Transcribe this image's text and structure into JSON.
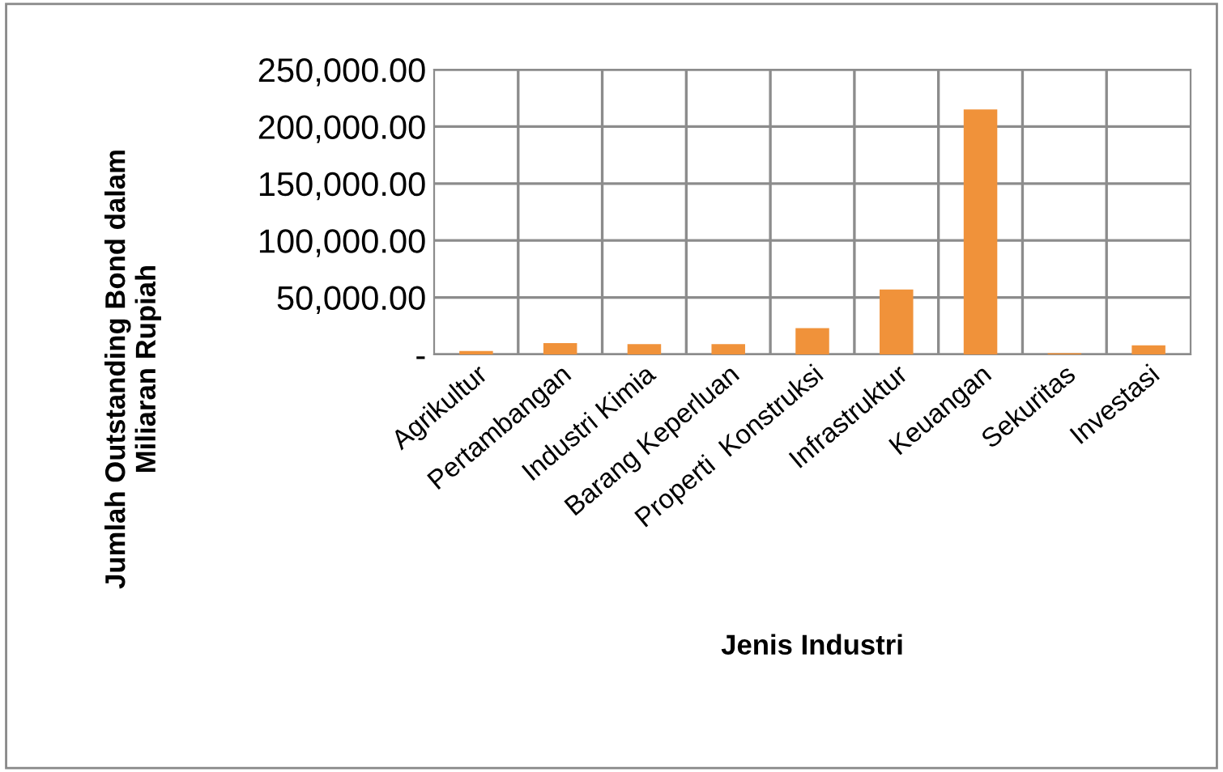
{
  "chart_data": {
    "type": "bar",
    "xlabel": "Jenis Industri",
    "ylabel": "Jumlah Outstanding Bond dalam\nMiliaran Rupiah",
    "categories": [
      "Agrikultur",
      "Pertambangan",
      "Industri Kimia",
      "Barang Keperluan",
      "Properti  Konstruksi",
      "Infrastruktur",
      "Keuangan",
      "Sekuritas",
      "Investasi"
    ],
    "values": [
      3000,
      10000,
      9000,
      9000,
      23000,
      57000,
      215000,
      1000,
      8000
    ],
    "color": "#f0923a",
    "ylim": [
      0,
      250000
    ],
    "yticks": [
      {
        "value": 0,
        "label": "-"
      },
      {
        "value": 50000,
        "label": "50,000.00"
      },
      {
        "value": 100000,
        "label": "100,000.00"
      },
      {
        "value": 150000,
        "label": "150,000.00"
      },
      {
        "value": 200000,
        "label": "200,000.00"
      },
      {
        "value": 250000,
        "label": "250,000.00"
      }
    ],
    "grid": true
  }
}
